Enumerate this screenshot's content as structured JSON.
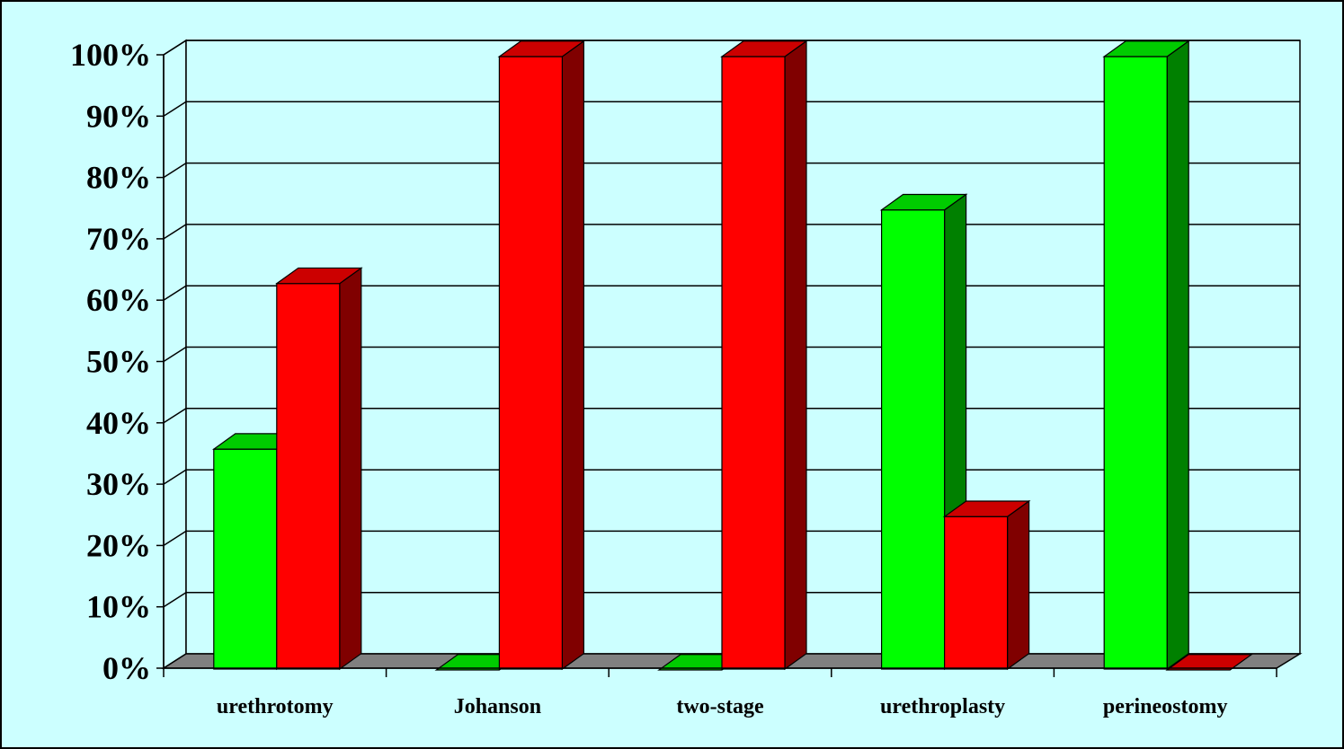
{
  "chart_data": {
    "type": "bar",
    "style": "3d-clustered-column",
    "categories": [
      "urethrotomy",
      "Johanson",
      "two-stage",
      "urethroplasty",
      "perineostomy"
    ],
    "series": [
      {
        "values": [
          36,
          0,
          0,
          75,
          100
        ],
        "color": "#00ff00",
        "side_color": "#008000",
        "top_color": "#00cc00"
      },
      {
        "values": [
          63,
          100,
          100,
          25,
          0
        ],
        "color": "#ff0000",
        "side_color": "#800000",
        "top_color": "#cc0000"
      }
    ],
    "ylim": [
      0,
      100
    ],
    "yticks": [
      "0%",
      "10%",
      "20%",
      "30%",
      "40%",
      "50%",
      "60%",
      "70%",
      "80%",
      "90%",
      "100%"
    ],
    "grid": true,
    "legend": "none",
    "background": "#ccffff",
    "floor_color": "#808080"
  }
}
